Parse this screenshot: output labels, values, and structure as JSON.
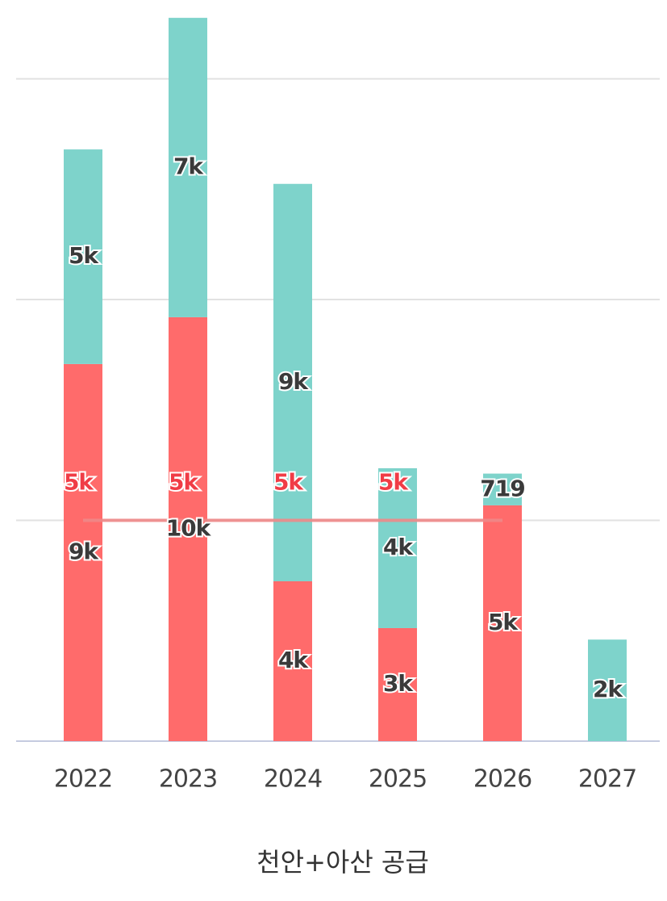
{
  "chart_data": {
    "type": "stacked_bar_line",
    "categories": [
      "2022",
      "2023",
      "2024",
      "2025",
      "2026",
      "2027"
    ],
    "x_label": "천안+아산 공급",
    "ylim": [
      0,
      16400
    ],
    "yticks": [
      0,
      5000,
      10000,
      15000
    ],
    "grid": true,
    "series": [
      {
        "color": "#ff6b6b",
        "values": [
          8540,
          9600,
          3620,
          2560,
          5340,
          null
        ],
        "value_labels": [
          "9k",
          "10k",
          "4k",
          "3k",
          "5k",
          null
        ]
      },
      {
        "color": "#7ed3cb",
        "values": [
          4860,
          6780,
          9000,
          3620,
          719,
          2300
        ],
        "value_labels": [
          "5k",
          "7k",
          "9k",
          "4k",
          "719",
          "2k"
        ]
      },
      {
        "type": "line",
        "color": "#ee8888",
        "values": [
          5000,
          5000,
          5000,
          5000,
          5000,
          null
        ],
        "value_labels": [
          "5k",
          "5k",
          "5k",
          "5k",
          null,
          null
        ]
      }
    ]
  }
}
